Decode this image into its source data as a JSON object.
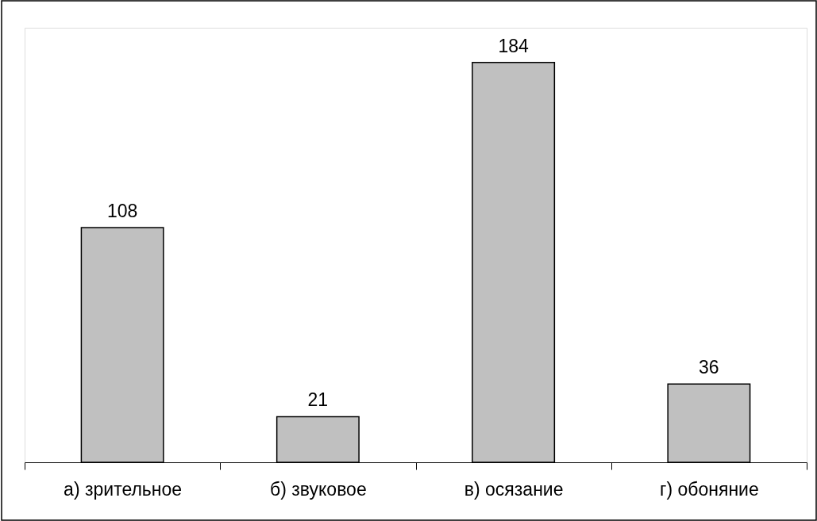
{
  "chart_data": {
    "type": "bar",
    "categories": [
      "а) зрительное",
      "б) звуковое",
      "в) осязание",
      "г) обоняние"
    ],
    "values": [
      108,
      21,
      184,
      36
    ],
    "color": "#c0c0c0",
    "data_labels": true,
    "grid": false,
    "tick_labels": "x"
  }
}
